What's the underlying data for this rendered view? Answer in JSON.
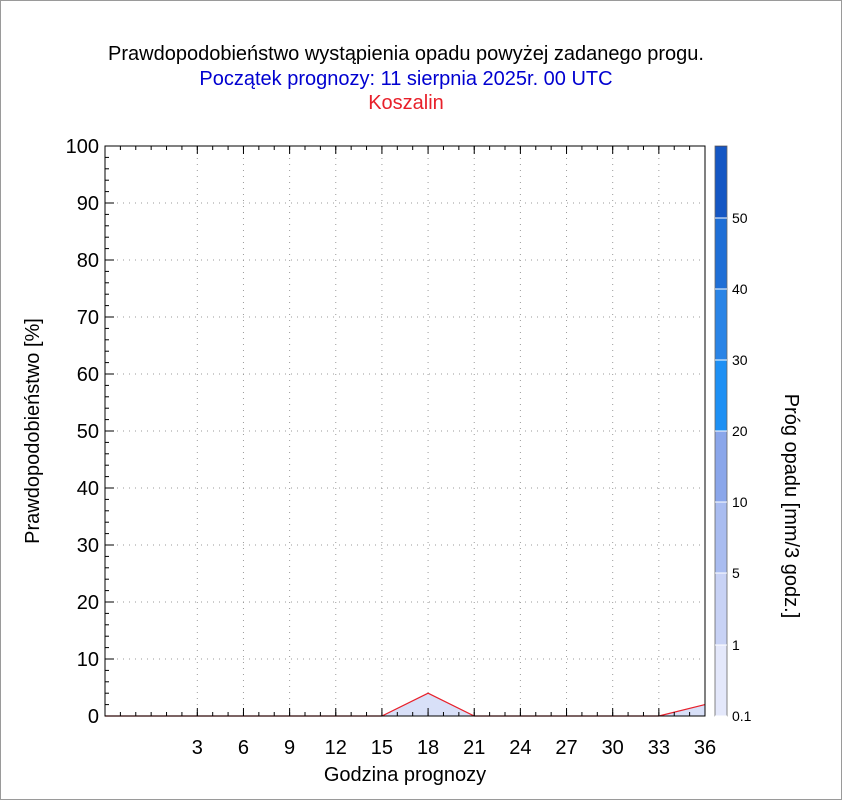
{
  "header": {
    "title": "Prawdopodobieństwo wystąpienia opadu powyżej zadanego progu.",
    "subtitle": "Początek prognozy: 11 sierpnia 2025r. 00 UTC",
    "location": "Koszalin"
  },
  "colors": {
    "title": "#000000",
    "subtitle": "#0000d0",
    "location": "#e8202a",
    "series_line": "#e8202a",
    "series_fill": "#d8e0f8"
  },
  "chart_data": {
    "type": "area",
    "title": "Prawdopodobieństwo wystąpienia opadu powyżej zadanego progu.",
    "xlabel": "Godzina prognozy",
    "ylabel": "Prawdopodobieństwo [%]",
    "xlim": [
      -3,
      36
    ],
    "ylim": [
      0,
      100
    ],
    "x_ticks": [
      3,
      6,
      9,
      12,
      15,
      18,
      21,
      24,
      27,
      30,
      33,
      36
    ],
    "y_ticks": [
      0,
      10,
      20,
      30,
      40,
      50,
      60,
      70,
      80,
      90,
      100
    ],
    "grid": true,
    "series": [
      {
        "x": [
          -3,
          0,
          3,
          6,
          9,
          12,
          15,
          18,
          21,
          24,
          27,
          30,
          33,
          36
        ],
        "values": [
          0,
          0,
          0,
          0,
          0,
          0,
          0,
          4,
          0,
          0,
          0,
          0,
          0,
          2
        ]
      }
    ],
    "colorbar": {
      "label": "Próg opadu [mm/3 godz.]",
      "tick_labels": [
        "0.1",
        "1",
        "5",
        "10",
        "20",
        "30",
        "40",
        "50"
      ],
      "band_colors": [
        "#e4e8fb",
        "#c8d2f5",
        "#a9bcf0",
        "#8aa6ea",
        "#1e90f4",
        "#2a84e6",
        "#1f6fd6",
        "#1557c4",
        "#0d3fa8"
      ]
    }
  }
}
